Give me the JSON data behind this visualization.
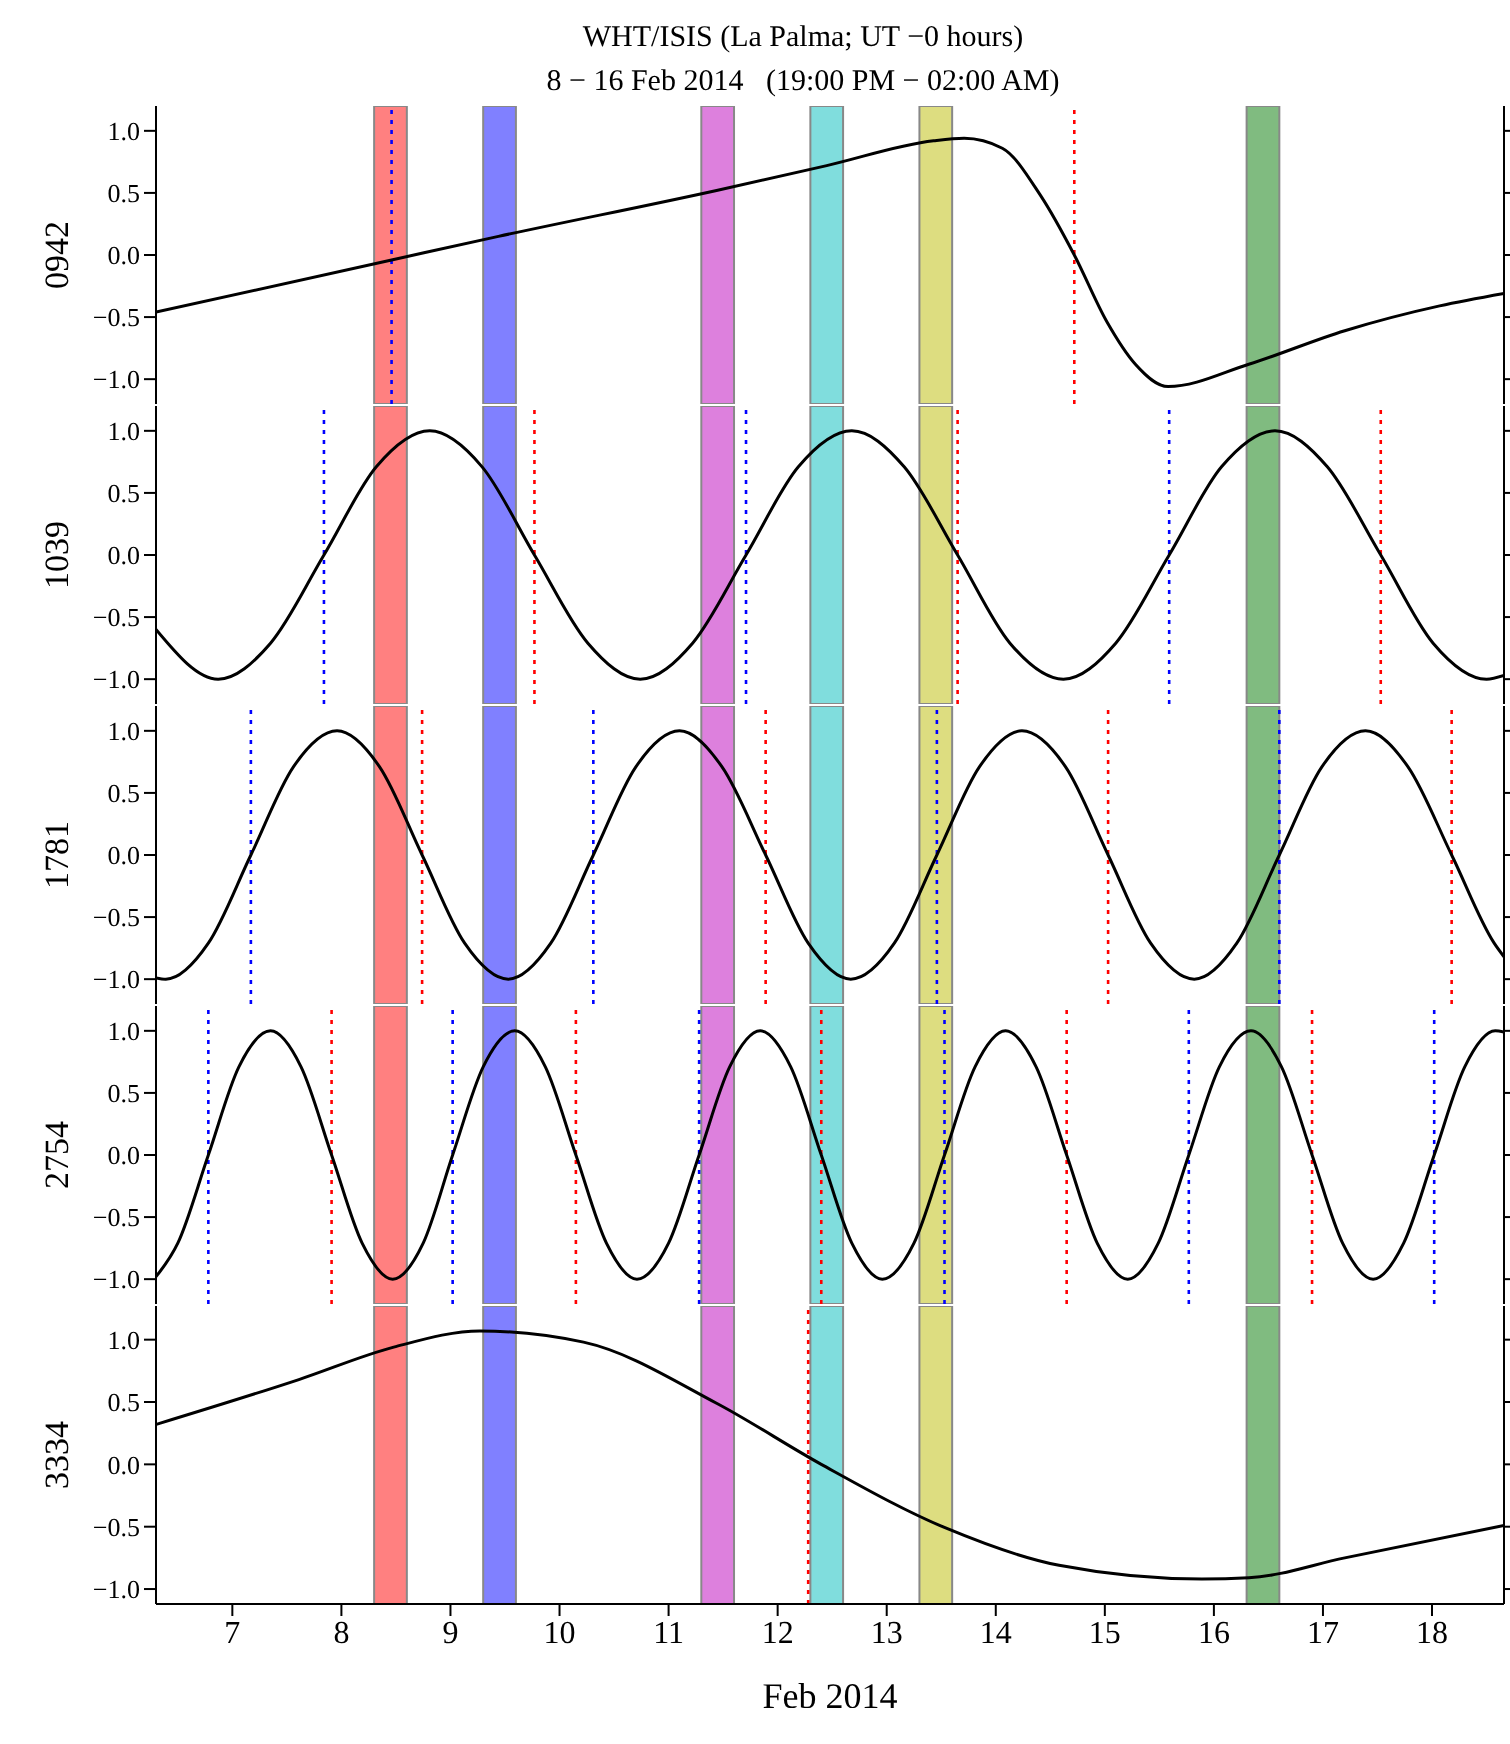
{
  "chart_data": [
    {
      "type": "line",
      "title": "WHT/ISIS (La Palma; UT −0 hours)",
      "subtitle": "8 − 16 Feb 2014   (19:00 PM − 02:00 AM)",
      "ylabel": "0942",
      "tick_labels": "y",
      "xlim": [
        6.3,
        18.66
      ],
      "xticks": [
        7,
        8,
        9,
        10,
        11,
        12,
        13,
        14,
        15,
        16,
        17,
        18
      ],
      "ylim": [
        -1.2,
        1.2
      ],
      "yticks": [
        {
          "value": -1,
          "label": "−1.0"
        },
        {
          "value": -0.5,
          "label": "−0.5"
        },
        {
          "value": 0,
          "label": "0.0"
        },
        {
          "value": 0.5,
          "label": "0.5"
        },
        {
          "value": 1,
          "label": "1.0"
        }
      ],
      "series": [
        {
          "color": "#000000",
          "x": [
            6.3,
            8.46,
            9.44,
            11.44,
            12.45,
            13.43,
            13.71,
            14.06,
            14.41,
            14.72,
            15.02,
            15.28,
            15.58,
            16.32,
            17.2,
            18.07,
            18.66
          ],
          "values": [
            -0.46,
            -0.04,
            0.15,
            0.52,
            0.72,
            0.92,
            0.94,
            0.86,
            0.48,
            0,
            -0.54,
            -0.88,
            -1.06,
            -0.88,
            -0.61,
            -0.41,
            -0.31
          ]
        }
      ],
      "bands": [
        {
          "axis": "x",
          "from": 8.3,
          "to": 8.6,
          "color": "#ff8080"
        },
        {
          "axis": "x",
          "from": 9.3,
          "to": 9.6,
          "color": "#8080ff"
        },
        {
          "axis": "x",
          "from": 11.3,
          "to": 11.6,
          "color": "#dd80dd"
        },
        {
          "axis": "x",
          "from": 12.3,
          "to": 12.6,
          "color": "#80dddd"
        },
        {
          "axis": "x",
          "from": 13.3,
          "to": 13.6,
          "color": "#dddd80"
        },
        {
          "axis": "x",
          "from": 16.3,
          "to": 16.6,
          "color": "#80bb80"
        }
      ],
      "ref_lines": [
        {
          "axis": "x",
          "value": 8.46,
          "color": "#0000ff",
          "line_style": "dotted"
        },
        {
          "axis": "x",
          "value": 14.72,
          "color": "#ff0000",
          "line_style": "dotted"
        }
      ]
    },
    {
      "type": "line",
      "ylabel": "1039",
      "tick_labels": "y",
      "xlim": [
        6.3,
        18.66
      ],
      "xticks": [
        7,
        8,
        9,
        10,
        11,
        12,
        13,
        14,
        15,
        16,
        17,
        18
      ],
      "ylim": [
        -1.2,
        1.2
      ],
      "yticks": [
        {
          "value": -1,
          "label": "−1.0"
        },
        {
          "value": -0.5,
          "label": "−0.5"
        },
        {
          "value": 0,
          "label": "0.0"
        },
        {
          "value": 0.5,
          "label": "0.5"
        },
        {
          "value": 1,
          "label": "1.0"
        }
      ],
      "series": [
        {
          "color": "#000000",
          "x": [
            6.3,
            6.87,
            7.35,
            7.84,
            8.32,
            8.81,
            9.29,
            9.77,
            10.26,
            10.74,
            11.22,
            11.71,
            12.19,
            12.68,
            13.16,
            13.65,
            14.13,
            14.62,
            15.1,
            15.59,
            16.07,
            16.56,
            17.04,
            17.53,
            18.01,
            18.5,
            18.66
          ],
          "values": [
            -0.6,
            -1,
            -0.71,
            0,
            0.71,
            1,
            0.71,
            0,
            -0.71,
            -1,
            -0.71,
            0,
            0.71,
            1,
            0.71,
            0,
            -0.71,
            -1,
            -0.71,
            0,
            0.71,
            1,
            0.71,
            0,
            -0.71,
            -1,
            -0.97
          ]
        }
      ],
      "bands": [
        {
          "axis": "x",
          "from": 8.3,
          "to": 8.6,
          "color": "#ff8080"
        },
        {
          "axis": "x",
          "from": 9.3,
          "to": 9.6,
          "color": "#8080ff"
        },
        {
          "axis": "x",
          "from": 11.3,
          "to": 11.6,
          "color": "#dd80dd"
        },
        {
          "axis": "x",
          "from": 12.3,
          "to": 12.6,
          "color": "#80dddd"
        },
        {
          "axis": "x",
          "from": 13.3,
          "to": 13.6,
          "color": "#dddd80"
        },
        {
          "axis": "x",
          "from": 16.3,
          "to": 16.6,
          "color": "#80bb80"
        }
      ],
      "ref_lines": [
        {
          "axis": "x",
          "value": 7.84,
          "color": "#0000ff",
          "line_style": "dotted"
        },
        {
          "axis": "x",
          "value": 9.77,
          "color": "#ff0000",
          "line_style": "dotted"
        },
        {
          "axis": "x",
          "value": 11.71,
          "color": "#0000ff",
          "line_style": "dotted"
        },
        {
          "axis": "x",
          "value": 13.65,
          "color": "#ff0000",
          "line_style": "dotted"
        },
        {
          "axis": "x",
          "value": 15.59,
          "color": "#0000ff",
          "line_style": "dotted"
        },
        {
          "axis": "x",
          "value": 17.53,
          "color": "#ff0000",
          "line_style": "dotted"
        }
      ]
    },
    {
      "type": "line",
      "ylabel": "1781",
      "tick_labels": "y",
      "xlim": [
        6.3,
        18.66
      ],
      "xticks": [
        7,
        8,
        9,
        10,
        11,
        12,
        13,
        14,
        15,
        16,
        17,
        18
      ],
      "ylim": [
        -1.2,
        1.2
      ],
      "yticks": [
        {
          "value": -1,
          "label": "−1.0"
        },
        {
          "value": -0.5,
          "label": "−0.5"
        },
        {
          "value": 0,
          "label": "0.0"
        },
        {
          "value": 0.5,
          "label": "0.5"
        },
        {
          "value": 1,
          "label": "1.0"
        }
      ],
      "series": [
        {
          "color": "#000000",
          "x": [
            6.3,
            6.39,
            6.78,
            7.17,
            7.56,
            7.96,
            8.35,
            8.74,
            9.13,
            9.53,
            9.92,
            10.31,
            10.7,
            11.1,
            11.49,
            11.89,
            12.28,
            12.67,
            13.07,
            13.46,
            13.85,
            14.24,
            14.64,
            15.03,
            15.42,
            15.82,
            16.21,
            16.6,
            16.99,
            17.39,
            17.78,
            18.18,
            18.57,
            18.66
          ],
          "values": [
            -0.99,
            -1,
            -0.71,
            0,
            0.71,
            1,
            0.71,
            0,
            -0.71,
            -1,
            -0.71,
            0,
            0.71,
            1,
            0.71,
            0,
            -0.71,
            -1,
            -0.71,
            0,
            0.71,
            1,
            0.71,
            0,
            -0.71,
            -1,
            -0.71,
            0,
            0.71,
            1,
            0.71,
            0,
            -0.71,
            -0.82
          ]
        }
      ],
      "bands": [
        {
          "axis": "x",
          "from": 8.3,
          "to": 8.6,
          "color": "#ff8080"
        },
        {
          "axis": "x",
          "from": 9.3,
          "to": 9.6,
          "color": "#8080ff"
        },
        {
          "axis": "x",
          "from": 11.3,
          "to": 11.6,
          "color": "#dd80dd"
        },
        {
          "axis": "x",
          "from": 12.3,
          "to": 12.6,
          "color": "#80dddd"
        },
        {
          "axis": "x",
          "from": 13.3,
          "to": 13.6,
          "color": "#dddd80"
        },
        {
          "axis": "x",
          "from": 16.3,
          "to": 16.6,
          "color": "#80bb80"
        }
      ],
      "ref_lines": [
        {
          "axis": "x",
          "value": 7.17,
          "color": "#0000ff",
          "line_style": "dotted"
        },
        {
          "axis": "x",
          "value": 8.74,
          "color": "#ff0000",
          "line_style": "dotted"
        },
        {
          "axis": "x",
          "value": 10.31,
          "color": "#0000ff",
          "line_style": "dotted"
        },
        {
          "axis": "x",
          "value": 11.89,
          "color": "#ff0000",
          "line_style": "dotted"
        },
        {
          "axis": "x",
          "value": 13.46,
          "color": "#0000ff",
          "line_style": "dotted"
        },
        {
          "axis": "x",
          "value": 15.03,
          "color": "#ff0000",
          "line_style": "dotted"
        },
        {
          "axis": "x",
          "value": 16.6,
          "color": "#0000ff",
          "line_style": "dotted"
        },
        {
          "axis": "x",
          "value": 18.18,
          "color": "#ff0000",
          "line_style": "dotted"
        }
      ]
    },
    {
      "type": "line",
      "ylabel": "2754",
      "tick_labels": "y",
      "xlim": [
        6.3,
        18.66
      ],
      "xticks": [
        7,
        8,
        9,
        10,
        11,
        12,
        13,
        14,
        15,
        16,
        17,
        18
      ],
      "ylim": [
        -1.2,
        1.2
      ],
      "yticks": [
        {
          "value": -1,
          "label": "−1.0"
        },
        {
          "value": -0.5,
          "label": "−0.5"
        },
        {
          "value": 0,
          "label": "0.0"
        },
        {
          "value": 0.5,
          "label": "0.5"
        },
        {
          "value": 1,
          "label": "1.0"
        }
      ],
      "series": [
        {
          "color": "#000000",
          "x": [
            6.3,
            6.5,
            6.78,
            7.06,
            7.35,
            7.63,
            7.91,
            8.19,
            8.47,
            8.75,
            9.02,
            9.3,
            9.59,
            9.87,
            10.15,
            10.43,
            10.71,
            11.0,
            11.28,
            11.56,
            11.84,
            12.12,
            12.4,
            12.68,
            12.96,
            13.25,
            13.53,
            13.81,
            14.09,
            14.37,
            14.65,
            14.93,
            15.21,
            15.49,
            15.77,
            16.05,
            16.34,
            16.62,
            16.9,
            17.18,
            17.46,
            17.74,
            18.02,
            18.3,
            18.58,
            18.66
          ],
          "values": [
            -0.98,
            -0.71,
            0,
            0.71,
            1,
            0.71,
            0,
            -0.71,
            -1,
            -0.71,
            0,
            0.71,
            1,
            0.71,
            0,
            -0.71,
            -1,
            -0.71,
            0,
            0.71,
            1,
            0.71,
            0,
            -0.71,
            -1,
            -0.71,
            0,
            0.71,
            1,
            0.71,
            0,
            -0.71,
            -1,
            -0.71,
            0,
            0.71,
            1,
            0.71,
            0,
            -0.71,
            -1,
            -0.71,
            0,
            0.71,
            1,
            0.99
          ]
        }
      ],
      "bands": [
        {
          "axis": "x",
          "from": 8.3,
          "to": 8.6,
          "color": "#ff8080"
        },
        {
          "axis": "x",
          "from": 9.3,
          "to": 9.6,
          "color": "#8080ff"
        },
        {
          "axis": "x",
          "from": 11.3,
          "to": 11.6,
          "color": "#dd80dd"
        },
        {
          "axis": "x",
          "from": 12.3,
          "to": 12.6,
          "color": "#80dddd"
        },
        {
          "axis": "x",
          "from": 13.3,
          "to": 13.6,
          "color": "#dddd80"
        },
        {
          "axis": "x",
          "from": 16.3,
          "to": 16.6,
          "color": "#80bb80"
        }
      ],
      "ref_lines": [
        {
          "axis": "x",
          "value": 6.78,
          "color": "#0000ff",
          "line_style": "dotted"
        },
        {
          "axis": "x",
          "value": 7.91,
          "color": "#ff0000",
          "line_style": "dotted"
        },
        {
          "axis": "x",
          "value": 9.02,
          "color": "#0000ff",
          "line_style": "dotted"
        },
        {
          "axis": "x",
          "value": 10.15,
          "color": "#ff0000",
          "line_style": "dotted"
        },
        {
          "axis": "x",
          "value": 11.28,
          "color": "#0000ff",
          "line_style": "dotted"
        },
        {
          "axis": "x",
          "value": 12.4,
          "color": "#ff0000",
          "line_style": "dotted"
        },
        {
          "axis": "x",
          "value": 13.53,
          "color": "#0000ff",
          "line_style": "dotted"
        },
        {
          "axis": "x",
          "value": 14.65,
          "color": "#ff0000",
          "line_style": "dotted"
        },
        {
          "axis": "x",
          "value": 15.77,
          "color": "#0000ff",
          "line_style": "dotted"
        },
        {
          "axis": "x",
          "value": 16.9,
          "color": "#ff0000",
          "line_style": "dotted"
        },
        {
          "axis": "x",
          "value": 18.02,
          "color": "#0000ff",
          "line_style": "dotted"
        }
      ]
    },
    {
      "type": "line",
      "ylabel": "3334",
      "xlabel": "Feb 2014",
      "xlim": [
        6.3,
        18.66
      ],
      "xticks": [
        7,
        8,
        9,
        10,
        11,
        12,
        13,
        14,
        15,
        16,
        17,
        18
      ],
      "ylim": [
        -1.12,
        1.27
      ],
      "yticks": [
        {
          "value": -1,
          "label": "−1.0"
        },
        {
          "value": -0.5,
          "label": "−0.5"
        },
        {
          "value": 0,
          "label": "0.0"
        },
        {
          "value": 0.5,
          "label": "0.5"
        },
        {
          "value": 1,
          "label": "1.0"
        }
      ],
      "series": [
        {
          "color": "#000000",
          "x": [
            6.3,
            7.61,
            8.48,
            9.27,
            10.22,
            11.44,
            12.4,
            13.54,
            14.58,
            15.89,
            16.32,
            17.2,
            18.66
          ],
          "values": [
            0.32,
            0.68,
            0.94,
            1.07,
            0.98,
            0.49,
            0,
            -0.51,
            -0.81,
            -0.92,
            -0.91,
            -0.75,
            -0.49
          ]
        }
      ],
      "bands": [
        {
          "axis": "x",
          "from": 8.3,
          "to": 8.6,
          "color": "#ff8080"
        },
        {
          "axis": "x",
          "from": 9.3,
          "to": 9.6,
          "color": "#8080ff"
        },
        {
          "axis": "x",
          "from": 11.3,
          "to": 11.6,
          "color": "#dd80dd"
        },
        {
          "axis": "x",
          "from": 12.3,
          "to": 12.6,
          "color": "#80dddd"
        },
        {
          "axis": "x",
          "from": 13.3,
          "to": 13.6,
          "color": "#dddd80"
        },
        {
          "axis": "x",
          "from": 16.3,
          "to": 16.6,
          "color": "#80bb80"
        }
      ],
      "ref_lines": [
        {
          "axis": "x",
          "value": 12.28,
          "color": "#ff0000",
          "line_style": "dotted"
        }
      ]
    }
  ]
}
